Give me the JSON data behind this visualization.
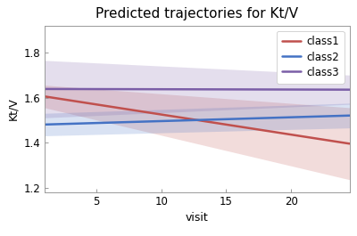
{
  "title": "Predicted trajectories for Kt/V",
  "xlabel": "visit",
  "ylabel": "Kt/V",
  "xlim": [
    1,
    24.5
  ],
  "ylim": [
    1.18,
    1.92
  ],
  "yticks": [
    1.2,
    1.4,
    1.6,
    1.8
  ],
  "xticks": [
    5,
    10,
    15,
    20
  ],
  "background_color": "#ffffff",
  "classes": [
    {
      "name": "class1",
      "color": "#c0504d",
      "line_start": 1.605,
      "line_end": 1.395,
      "ci_upper_start": 1.655,
      "ci_upper_end": 1.555,
      "ci_lower_start": 1.555,
      "ci_lower_end": 1.235
    },
    {
      "name": "class2",
      "color": "#4472c4",
      "line_start": 1.48,
      "line_end": 1.52,
      "ci_upper_start": 1.53,
      "ci_upper_end": 1.575,
      "ci_lower_start": 1.43,
      "ci_lower_end": 1.465
    },
    {
      "name": "class3",
      "color": "#7b5ea7",
      "line_start": 1.638,
      "line_end": 1.635,
      "ci_upper_start": 1.765,
      "ci_upper_end": 1.7,
      "ci_lower_start": 1.51,
      "ci_lower_end": 1.57
    }
  ],
  "title_fontsize": 11,
  "label_fontsize": 9,
  "tick_fontsize": 8.5,
  "legend_fontsize": 8.5,
  "line_width": 1.8,
  "fill_alpha": 0.2
}
